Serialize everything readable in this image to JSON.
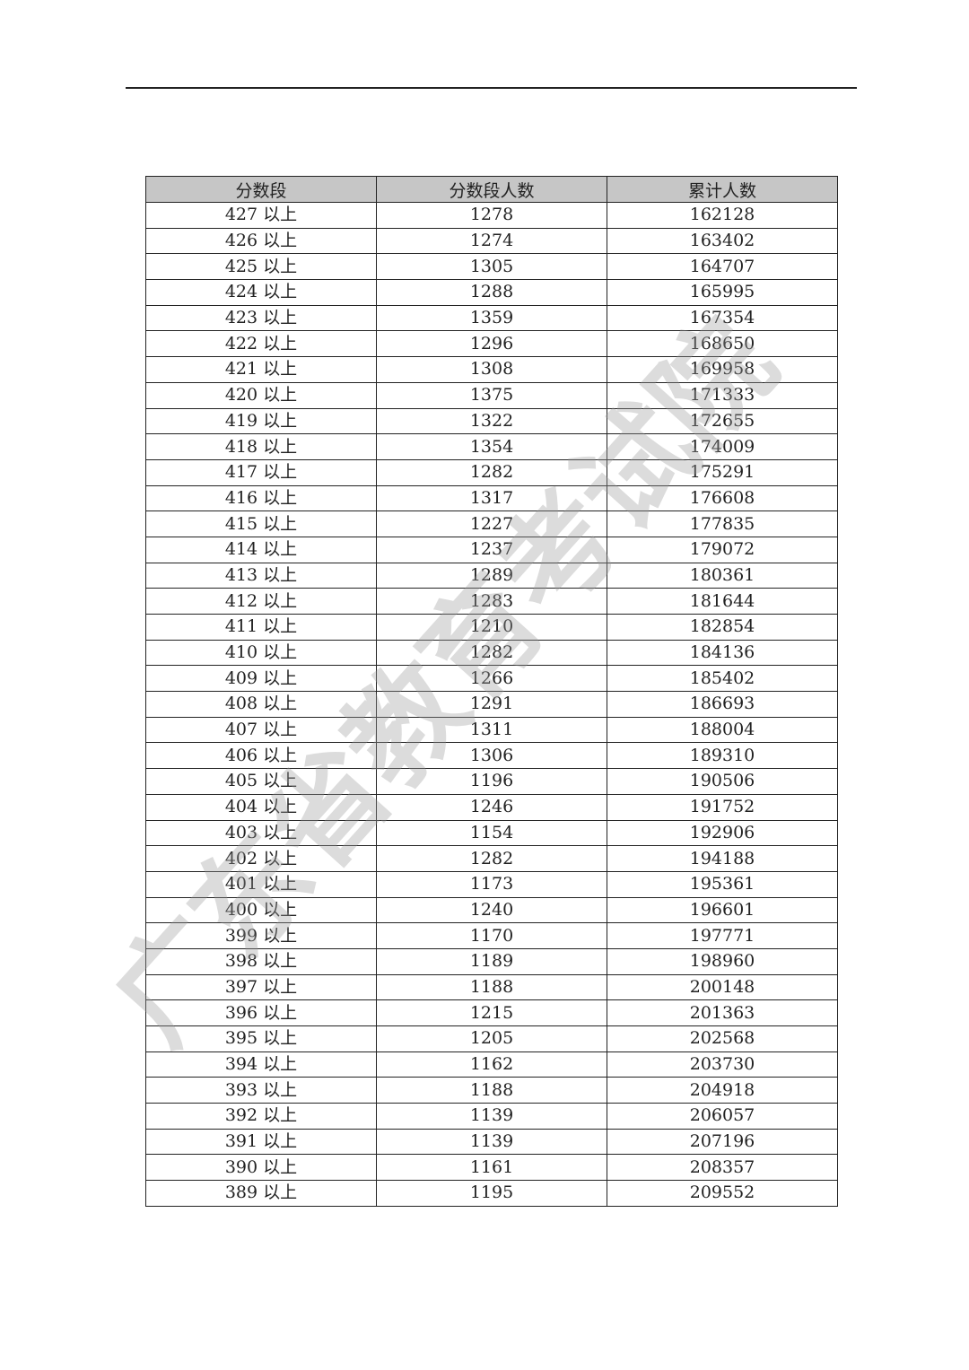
{
  "watermark": "广东省教育考试院",
  "table": {
    "headers": [
      "分数段",
      "分数段人数",
      "累计人数"
    ],
    "rows": [
      [
        "427 以上",
        "1278",
        "162128"
      ],
      [
        "426 以上",
        "1274",
        "163402"
      ],
      [
        "425 以上",
        "1305",
        "164707"
      ],
      [
        "424 以上",
        "1288",
        "165995"
      ],
      [
        "423 以上",
        "1359",
        "167354"
      ],
      [
        "422 以上",
        "1296",
        "168650"
      ],
      [
        "421 以上",
        "1308",
        "169958"
      ],
      [
        "420 以上",
        "1375",
        "171333"
      ],
      [
        "419 以上",
        "1322",
        "172655"
      ],
      [
        "418 以上",
        "1354",
        "174009"
      ],
      [
        "417 以上",
        "1282",
        "175291"
      ],
      [
        "416 以上",
        "1317",
        "176608"
      ],
      [
        "415 以上",
        "1227",
        "177835"
      ],
      [
        "414 以上",
        "1237",
        "179072"
      ],
      [
        "413 以上",
        "1289",
        "180361"
      ],
      [
        "412 以上",
        "1283",
        "181644"
      ],
      [
        "411 以上",
        "1210",
        "182854"
      ],
      [
        "410 以上",
        "1282",
        "184136"
      ],
      [
        "409 以上",
        "1266",
        "185402"
      ],
      [
        "408 以上",
        "1291",
        "186693"
      ],
      [
        "407 以上",
        "1311",
        "188004"
      ],
      [
        "406 以上",
        "1306",
        "189310"
      ],
      [
        "405 以上",
        "1196",
        "190506"
      ],
      [
        "404 以上",
        "1246",
        "191752"
      ],
      [
        "403 以上",
        "1154",
        "192906"
      ],
      [
        "402 以上",
        "1282",
        "194188"
      ],
      [
        "401 以上",
        "1173",
        "195361"
      ],
      [
        "400 以上",
        "1240",
        "196601"
      ],
      [
        "399 以上",
        "1170",
        "197771"
      ],
      [
        "398 以上",
        "1189",
        "198960"
      ],
      [
        "397 以上",
        "1188",
        "200148"
      ],
      [
        "396 以上",
        "1215",
        "201363"
      ],
      [
        "395 以上",
        "1205",
        "202568"
      ],
      [
        "394 以上",
        "1162",
        "203730"
      ],
      [
        "393 以上",
        "1188",
        "204918"
      ],
      [
        "392 以上",
        "1139",
        "206057"
      ],
      [
        "391 以上",
        "1139",
        "207196"
      ],
      [
        "390 以上",
        "1161",
        "208357"
      ],
      [
        "389 以上",
        "1195",
        "209552"
      ]
    ]
  }
}
